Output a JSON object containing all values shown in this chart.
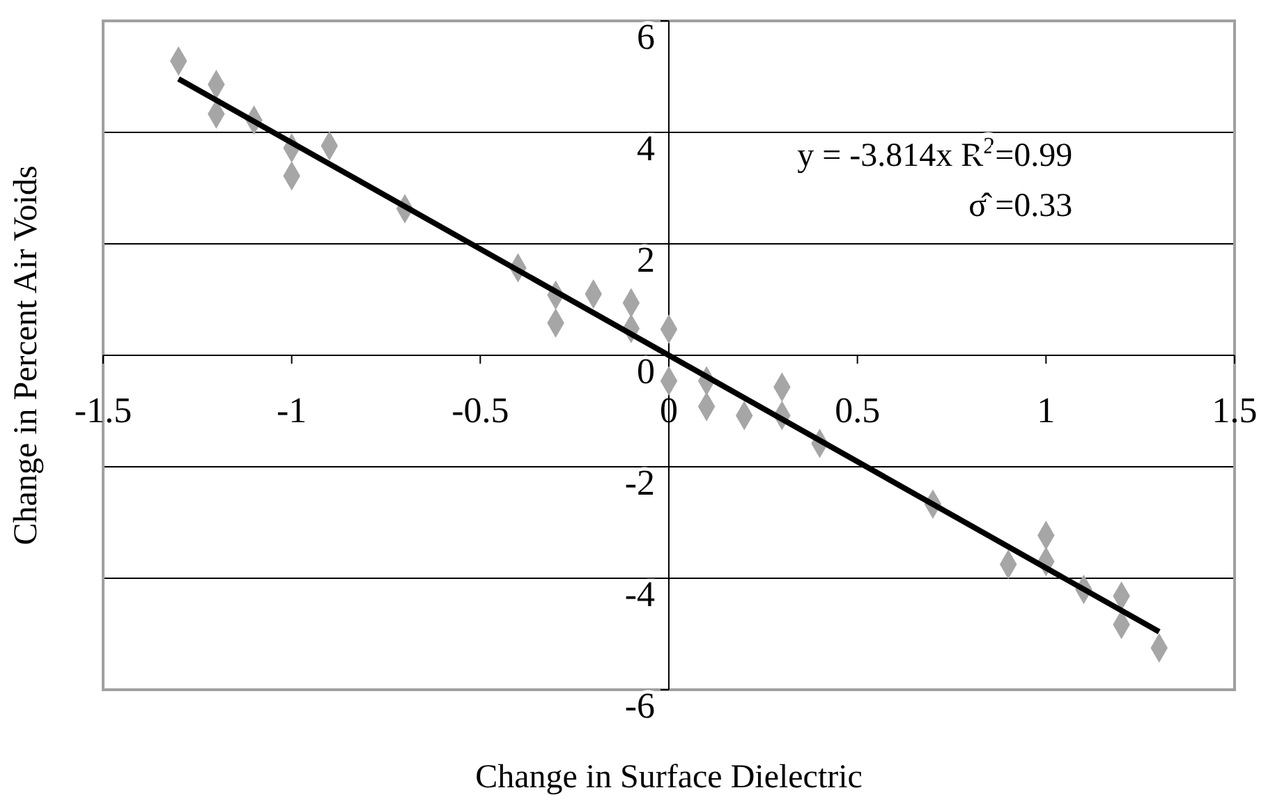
{
  "chart_data": {
    "type": "scatter",
    "xlabel": "Change in Surface Dielectric",
    "ylabel": "Change in Percent Air Voids",
    "xlim": [
      -1.5,
      1.5
    ],
    "xticks": [
      -1.5,
      -1,
      -0.5,
      0,
      0.5,
      1,
      1.5
    ],
    "ylim": [
      -6,
      6
    ],
    "yticks": [
      -6,
      -4,
      -2,
      0,
      2,
      4,
      6
    ],
    "grid": "y",
    "marker": "diamond",
    "annotations": [
      "y = -3.814x  R$^{2}$=0.99",
      "σ̂ =0.33"
    ],
    "series": [
      {
        "color": "#a6a6a6",
        "x": [
          -1.3,
          -1.2,
          -1.2,
          -1.1,
          -1.0,
          -1.0,
          -0.9,
          -0.7,
          -0.4,
          -0.3,
          -0.3,
          -0.2,
          -0.1,
          -0.1,
          0,
          0,
          0.1,
          0.1,
          0.2,
          0.3,
          0.3,
          0.4,
          0.7,
          0.9,
          1.0,
          1.0,
          1.1,
          1.2,
          1.2,
          1.3
        ],
        "values": [
          5.28,
          4.86,
          4.33,
          4.22,
          3.72,
          3.22,
          3.76,
          2.63,
          1.57,
          1.08,
          0.58,
          1.1,
          0.94,
          0.48,
          0.47,
          -0.46,
          -0.46,
          -0.92,
          -1.08,
          -0.57,
          -1.08,
          -1.58,
          -2.67,
          -3.75,
          -3.23,
          -3.7,
          -4.2,
          -4.32,
          -4.83,
          -5.25
        ]
      },
      {
        "type": "line",
        "color": "#000000",
        "x": [
          -1.3,
          1.3
        ],
        "values": [
          4.96,
          -4.96
        ],
        "line_style": "solid",
        "marker": "none"
      }
    ]
  }
}
